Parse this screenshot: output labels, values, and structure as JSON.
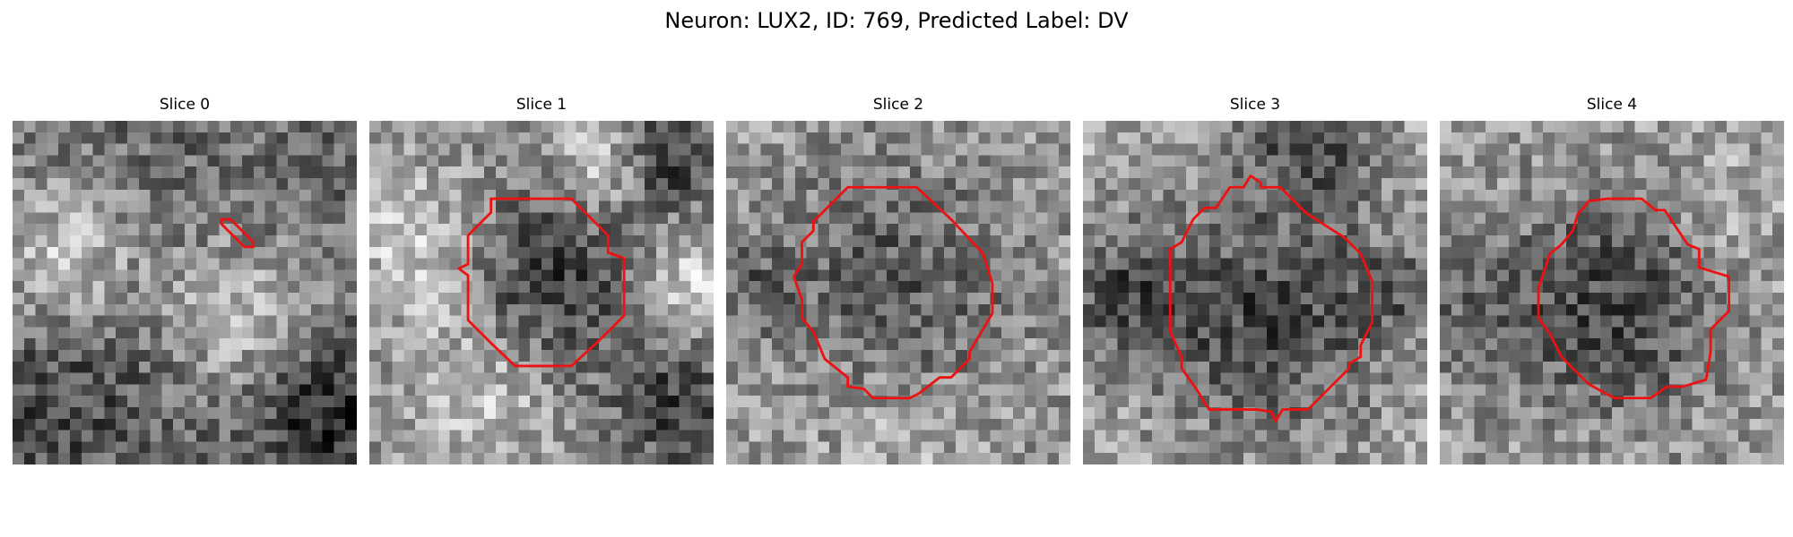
{
  "figure": {
    "title": "Neuron: LUX2, ID: 769, Predicted Label: DV"
  },
  "panels": [
    {
      "title": "Slice 0",
      "roi_color": "#ee1111"
    },
    {
      "title": "Slice 1",
      "roi_color": "#ee1111"
    },
    {
      "title": "Slice 2",
      "roi_color": "#ee1111"
    },
    {
      "title": "Slice 3",
      "roi_color": "#ee1111"
    },
    {
      "title": "Slice 4",
      "roi_color": "#ee1111"
    }
  ]
}
